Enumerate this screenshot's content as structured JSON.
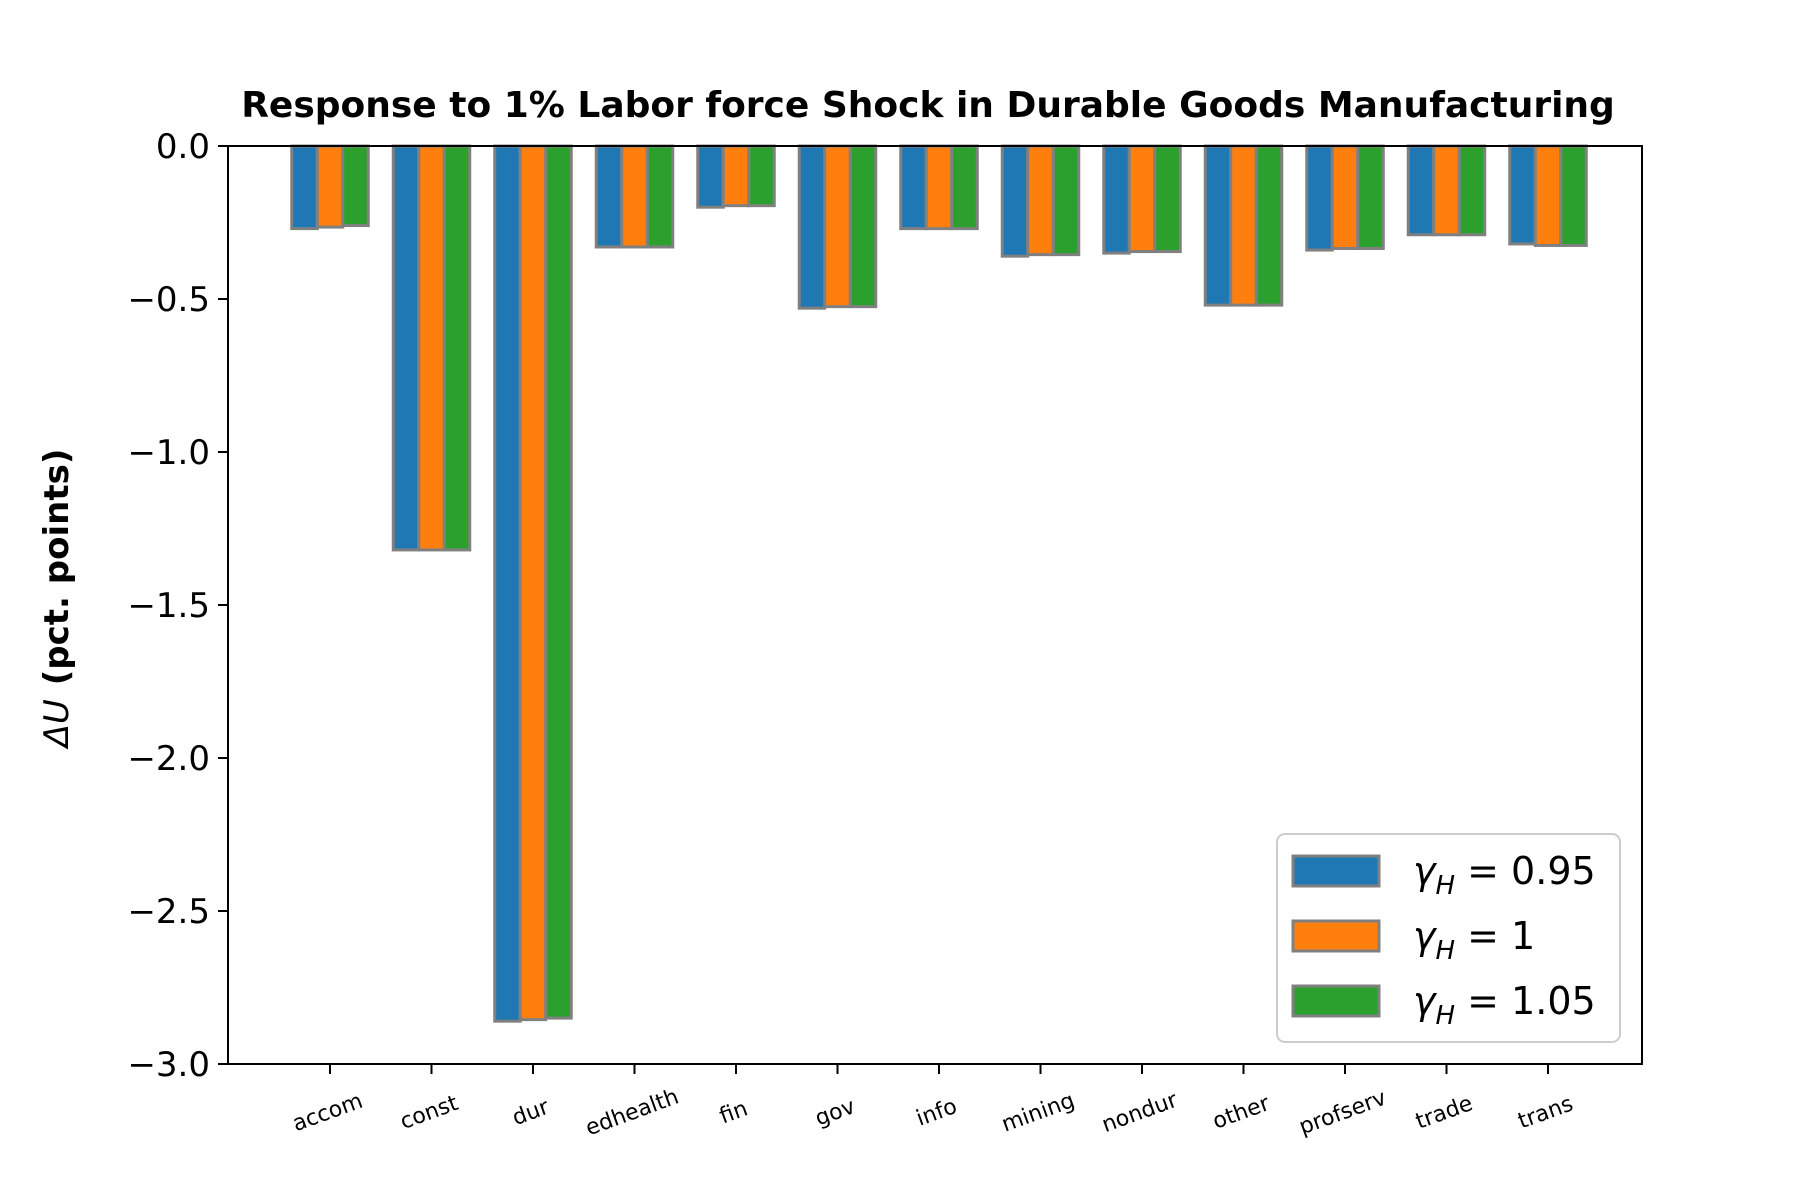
{
  "chart_data": {
    "type": "bar",
    "title": "Response to 1% Labor force Shock in Durable Goods Manufacturing",
    "ylabel_symbol": "ΔU",
    "ylabel_text": "(pct. points)",
    "xlabel": "",
    "ylim": [
      -3.0,
      0.0
    ],
    "yticks": [
      "0.0",
      "−0.5",
      "−1.0",
      "−1.5",
      "−2.0",
      "−2.5",
      "−3.0"
    ],
    "ytick_values": [
      0.0,
      -0.5,
      -1.0,
      -1.5,
      -2.0,
      -2.5,
      -3.0
    ],
    "categories": [
      "accom",
      "const",
      "dur",
      "edhealth",
      "fin",
      "gov",
      "info",
      "mining",
      "nondur",
      "other",
      "profserv",
      "trade",
      "trans"
    ],
    "series": [
      {
        "name": "γH = 0.95",
        "legend": {
          "sym": "γ",
          "sub": "H",
          "val": " = 0.95"
        },
        "color": "#1f77b4",
        "values": [
          -0.27,
          -1.32,
          -2.86,
          -0.33,
          -0.2,
          -0.53,
          -0.27,
          -0.36,
          -0.35,
          -0.52,
          -0.34,
          -0.29,
          -0.32
        ]
      },
      {
        "name": "γH = 1",
        "legend": {
          "sym": "γ",
          "sub": "H",
          "val": " = 1"
        },
        "color": "#ff7f0e",
        "values": [
          -0.265,
          -1.32,
          -2.855,
          -0.33,
          -0.195,
          -0.525,
          -0.27,
          -0.355,
          -0.345,
          -0.52,
          -0.335,
          -0.29,
          -0.325
        ]
      },
      {
        "name": "γH = 1.05",
        "legend": {
          "sym": "γ",
          "sub": "H",
          "val": " = 1.05"
        },
        "color": "#2ca02c",
        "values": [
          -0.26,
          -1.32,
          -2.85,
          -0.33,
          -0.195,
          -0.525,
          -0.27,
          -0.355,
          -0.345,
          -0.52,
          -0.335,
          -0.29,
          -0.325
        ]
      }
    ],
    "bar_edge_color": "#808080",
    "legend_position": "lower right",
    "grid": false
  }
}
